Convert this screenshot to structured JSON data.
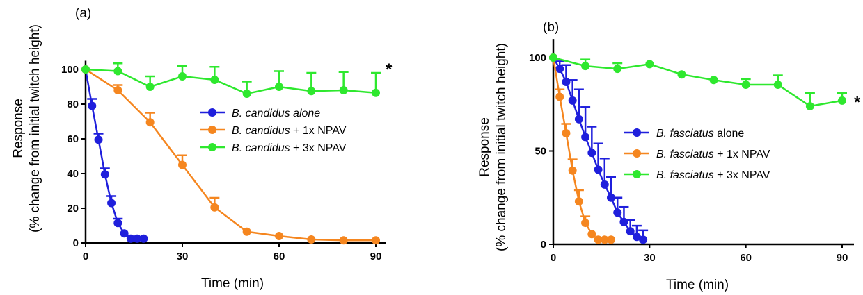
{
  "chart_data": [
    {
      "type": "line",
      "panel_label": "(a)",
      "xlabel": "Time (min)",
      "ylabel_line1": "Response",
      "ylabel_line2": "(% change from initial twitch height)",
      "xlim": [
        0,
        95
      ],
      "ylim": [
        0,
        105
      ],
      "xticks": [
        0,
        30,
        60,
        90
      ],
      "yticks": [
        0,
        20,
        40,
        60,
        80,
        100
      ],
      "legend_position": "center-right",
      "series": [
        {
          "legend_italic": "B. candidus alone",
          "legend_rest": "",
          "color": "#1f1fdc",
          "x": [
            0,
            2,
            4,
            6,
            8,
            10,
            12,
            14,
            16,
            18
          ],
          "y": [
            100,
            79,
            59.5,
            39.5,
            23,
            11.5,
            5.5,
            2.5,
            2.5,
            2.5
          ],
          "err": [
            0,
            4,
            3.5,
            3.5,
            4,
            2.5,
            0,
            0,
            0,
            0
          ]
        },
        {
          "legend_italic": "B. candidus",
          "legend_rest": " + 1x NPAV",
          "color": "#f5861f",
          "x": [
            0,
            10,
            20,
            30,
            40,
            50,
            60,
            70,
            80,
            90
          ],
          "y": [
            100,
            88,
            69.5,
            45,
            20.5,
            6.5,
            4,
            2,
            1.5,
            1.5
          ],
          "err": [
            0,
            3,
            5.5,
            5.5,
            5.5,
            0,
            0,
            0,
            0,
            0
          ]
        },
        {
          "legend_italic": "B. candidus",
          "legend_rest": " + 3x NPAV",
          "color": "#2ee82e",
          "x": [
            0,
            10,
            20,
            30,
            40,
            50,
            60,
            70,
            80,
            90
          ],
          "y": [
            100,
            99,
            90,
            96,
            94,
            86,
            90,
            87.5,
            88,
            86.5
          ],
          "err": [
            0,
            4.5,
            6,
            6,
            7.5,
            7,
            9,
            10.5,
            10.5,
            11.5
          ]
        }
      ],
      "annotation": "*"
    },
    {
      "type": "line",
      "panel_label": "(b)",
      "xlabel": "Time (min)",
      "ylabel_line1": "Response",
      "ylabel_line2": "(% change from initial twitch height)",
      "xlim": [
        0,
        95
      ],
      "ylim": [
        0,
        110
      ],
      "xticks": [
        0,
        30,
        60,
        90
      ],
      "yticks": [
        0,
        50,
        100
      ],
      "legend_position": "center-right",
      "series": [
        {
          "legend_italic": "B. fasciatus",
          "legend_rest": " alone",
          "color": "#1f1fdc",
          "x": [
            0,
            2,
            4,
            6,
            8,
            10,
            12,
            14,
            16,
            18,
            20,
            22,
            24,
            26,
            28
          ],
          "y": [
            100,
            94,
            87,
            77,
            67,
            57.5,
            49,
            40,
            32,
            25,
            17,
            12,
            7,
            4,
            2.5
          ],
          "err": [
            0,
            4,
            9,
            11,
            16,
            16,
            14,
            14,
            14,
            11,
            8,
            8,
            6,
            6,
            5
          ]
        },
        {
          "legend_italic": "B. fasciatus",
          "legend_rest": " + 1x NPAV",
          "color": "#f5861f",
          "x": [
            0,
            2,
            4,
            6,
            8,
            10,
            12,
            14,
            16,
            18
          ],
          "y": [
            100,
            79,
            59.5,
            39.5,
            23,
            11.5,
            5.5,
            2.5,
            2.5,
            2.5
          ],
          "err": [
            0,
            4,
            5,
            6,
            6,
            3.5,
            0,
            0,
            0,
            0
          ]
        },
        {
          "legend_italic": "B. fasciatus",
          "legend_rest": " + 3x NPAV",
          "color": "#2ee82e",
          "x": [
            0,
            10,
            20,
            30,
            40,
            50,
            60,
            70,
            80,
            90
          ],
          "y": [
            100,
            95.5,
            94,
            96.5,
            91,
            88,
            85.5,
            85.5,
            74,
            77
          ],
          "err": [
            0,
            3.5,
            3,
            0,
            0,
            0,
            3,
            5,
            7,
            4
          ]
        }
      ],
      "annotation": "*"
    }
  ]
}
